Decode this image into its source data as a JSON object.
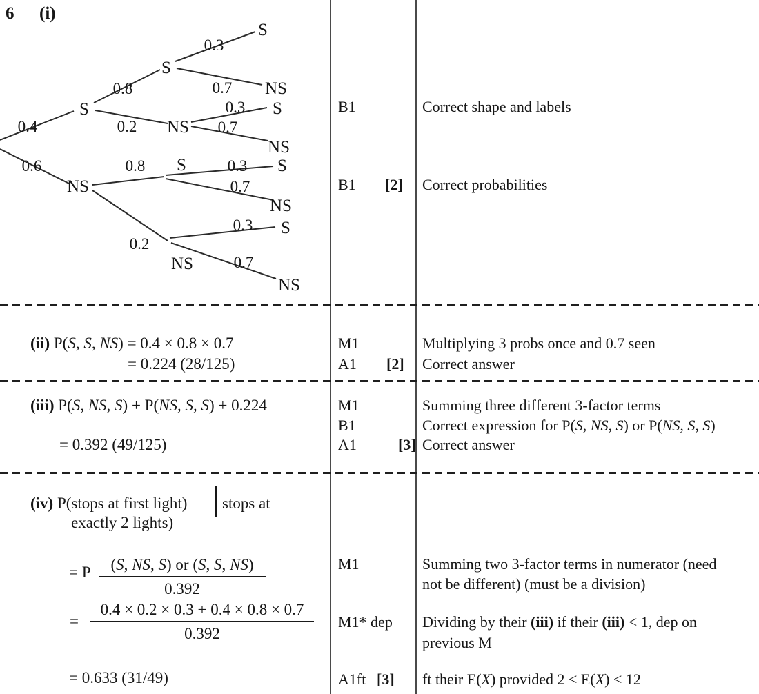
{
  "header": {
    "question_number": "6",
    "part_label": "(i)"
  },
  "tree": {
    "nodes": {
      "l1s": "S",
      "l1ns": "NS",
      "ss": "S",
      "sns": "NS",
      "nss": "S",
      "nsns": "NS",
      "sss": "S",
      "ssns": "NS",
      "snss": "S",
      "snsns": "NS",
      "nsss": "S",
      "nssns": "NS",
      "nsnss": "S",
      "nsnsns": "NS"
    },
    "probs": {
      "p_s": "0.4",
      "p_ns": "0.6",
      "s_s": "0.8",
      "s_ns": "0.2",
      "ns_s": "0.8",
      "ns_ns": "0.2",
      "ss_s": "0.3",
      "ss_ns": "0.7",
      "sns_s": "0.3",
      "sns_ns": "0.7",
      "nss_s": "0.3",
      "nss_ns": "0.7",
      "nsns_s": "0.3",
      "nsns_ns": "0.7"
    }
  },
  "rows": {
    "i": {
      "marks": [
        {
          "code": "B1",
          "bracket": ""
        },
        {
          "code": "B1",
          "bracket": "[2]"
        }
      ],
      "comments": [
        "Correct shape and labels",
        "Correct probabilities"
      ]
    },
    "ii": {
      "line1_runs": [
        {
          "t": "(ii)",
          "s": "b"
        },
        {
          "t": "  P(",
          "s": "r"
        },
        {
          "t": "S, S, NS",
          "s": "i"
        },
        {
          "t": ") = 0.4 × 0.8 × 0.7",
          "s": "r"
        }
      ],
      "line2": "= 0.224 (28/125)",
      "marks": [
        {
          "code": "M1",
          "bracket": ""
        },
        {
          "code": "A1",
          "bracket": "[2]"
        }
      ],
      "comments": [
        "Multiplying 3 probs once and 0.7 seen",
        "Correct answer"
      ]
    },
    "iii": {
      "line1_runs": [
        {
          "t": "(iii)",
          "s": "b"
        },
        {
          "t": " P(",
          "s": "r"
        },
        {
          "t": "S, NS, S",
          "s": "i"
        },
        {
          "t": ") + P(",
          "s": "r"
        },
        {
          "t": "NS, S, S",
          "s": "i"
        },
        {
          "t": ") + 0.224",
          "s": "r"
        }
      ],
      "line2": "= 0.392 (49/125)",
      "marks": [
        {
          "code": "M1",
          "bracket": ""
        },
        {
          "code": "B1",
          "bracket": ""
        },
        {
          "code": "A1",
          "bracket": "[3]"
        }
      ],
      "comment1": "Summing three different 3-factor terms",
      "comment2_runs": [
        {
          "t": "Correct expression for P(",
          "s": "r"
        },
        {
          "t": "S, NS, S",
          "s": "i"
        },
        {
          "t": ") or P(",
          "s": "r"
        },
        {
          "t": "NS, S, S",
          "s": "i"
        },
        {
          "t": ")",
          "s": "r"
        }
      ],
      "comment3": "Correct answer"
    },
    "iv": {
      "line1a_runs": [
        {
          "t": "(iv)",
          "s": "b"
        },
        {
          "t": "  P(stops at first light)",
          "s": "r"
        }
      ],
      "line1b": "stops at",
      "line2": "exactly 2 lights)",
      "frac1_prefix": "= P",
      "frac1_num_runs": [
        {
          "t": "(",
          "s": "r"
        },
        {
          "t": "S",
          "s": "i"
        },
        {
          "t": ", ",
          "s": "r"
        },
        {
          "t": "NS",
          "s": "i"
        },
        {
          "t": ", ",
          "s": "r"
        },
        {
          "t": "S",
          "s": "i"
        },
        {
          "t": ") or (",
          "s": "r"
        },
        {
          "t": "S",
          "s": "i"
        },
        {
          "t": ", ",
          "s": "r"
        },
        {
          "t": "S",
          "s": "i"
        },
        {
          "t": ", ",
          "s": "r"
        },
        {
          "t": "NS",
          "s": "i"
        },
        {
          "t": ")",
          "s": "r"
        }
      ],
      "frac1_den": "0.392",
      "frac2_prefix": "=",
      "frac2_num": "0.4 × 0.2 × 0.3 + 0.4 × 0.8 × 0.7",
      "frac2_den": "0.392",
      "result": "= 0.633 (31/49)",
      "marks": [
        {
          "code": "M1",
          "bracket": ""
        },
        {
          "code": "M1* dep",
          "bracket": ""
        },
        {
          "code": "A1ft",
          "bracket": "[3]"
        }
      ],
      "comment1a": "Summing two 3-factor terms in numerator (need",
      "comment1b": "not be different) (must be a division)",
      "comment2a_runs": [
        {
          "t": "Dividing by their ",
          "s": "r"
        },
        {
          "t": "(iii)",
          "s": "b"
        },
        {
          "t": " if their ",
          "s": "r"
        },
        {
          "t": "(iii)",
          "s": "b"
        },
        {
          "t": " < 1, dep on",
          "s": "r"
        }
      ],
      "comment2b": "previous M",
      "comment3_runs": [
        {
          "t": "ft their E(",
          "s": "r"
        },
        {
          "t": "X",
          "s": "i"
        },
        {
          "t": ") provided 2 < E(",
          "s": "r"
        },
        {
          "t": "X",
          "s": "i"
        },
        {
          "t": ") < 12",
          "s": "r"
        }
      ]
    }
  }
}
